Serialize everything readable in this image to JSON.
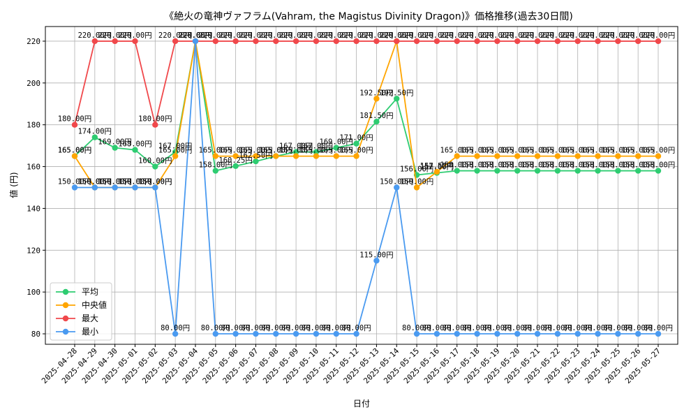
{
  "chart_data": {
    "type": "line",
    "title": "《絶火の竜神ヴァフラム(Vahram, the Magistus Divinity Dragon)》価格推移(過去30日間)",
    "xlabel": "日付",
    "ylabel": "値 (円)",
    "ylim": [
      75,
      227
    ],
    "yticks": [
      80,
      100,
      120,
      140,
      160,
      180,
      200,
      220
    ],
    "grid": true,
    "legend_position": "lower-left",
    "value_suffix": "円",
    "categories": [
      "2025-04-28",
      "2025-04-29",
      "2025-04-30",
      "2025-05-01",
      "2025-05-02",
      "2025-05-03",
      "2025-05-04",
      "2025-05-05",
      "2025-05-06",
      "2025-05-07",
      "2025-05-08",
      "2025-05-09",
      "2025-05-10",
      "2025-05-11",
      "2025-05-12",
      "2025-05-13",
      "2025-05-14",
      "2025-05-15",
      "2025-05-16",
      "2025-05-17",
      "2025-05-18",
      "2025-05-19",
      "2025-05-20",
      "2025-05-21",
      "2025-05-22",
      "2025-05-23",
      "2025-05-24",
      "2025-05-25",
      "2025-05-26",
      "2025-05-27"
    ],
    "series": [
      {
        "name": "平均",
        "color": "#2ecc71",
        "values": [
          165,
          174,
          169,
          168,
          160,
          167,
          220,
          158,
          160.25,
          162.5,
          165,
          167,
          167,
          169,
          171,
          181.5,
          192.5,
          156,
          157,
          158,
          158,
          158,
          158,
          158,
          158,
          158,
          158,
          158,
          158,
          158
        ]
      },
      {
        "name": "中央値",
        "color": "#ffa500",
        "values": [
          165,
          150,
          150,
          150,
          150,
          165,
          220,
          165,
          165,
          165,
          165,
          165,
          165,
          165,
          165,
          192.5,
          220,
          150,
          157.5,
          165,
          165,
          165,
          165,
          165,
          165,
          165,
          165,
          165,
          165,
          165
        ]
      },
      {
        "name": "最大",
        "color": "#f0484b",
        "values": [
          180,
          220,
          220,
          220,
          180,
          220,
          220,
          220,
          220,
          220,
          220,
          220,
          220,
          220,
          220,
          220,
          220,
          220,
          220,
          220,
          220,
          220,
          220,
          220,
          220,
          220,
          220,
          220,
          220,
          220
        ]
      },
      {
        "name": "最小",
        "color": "#4a9af0",
        "values": [
          150,
          150,
          150,
          150,
          150,
          80,
          220,
          80,
          80,
          80,
          80,
          80,
          80,
          80,
          80,
          115,
          150,
          80,
          80,
          80,
          80,
          80,
          80,
          80,
          80,
          80,
          80,
          80,
          80,
          80
        ]
      }
    ]
  }
}
